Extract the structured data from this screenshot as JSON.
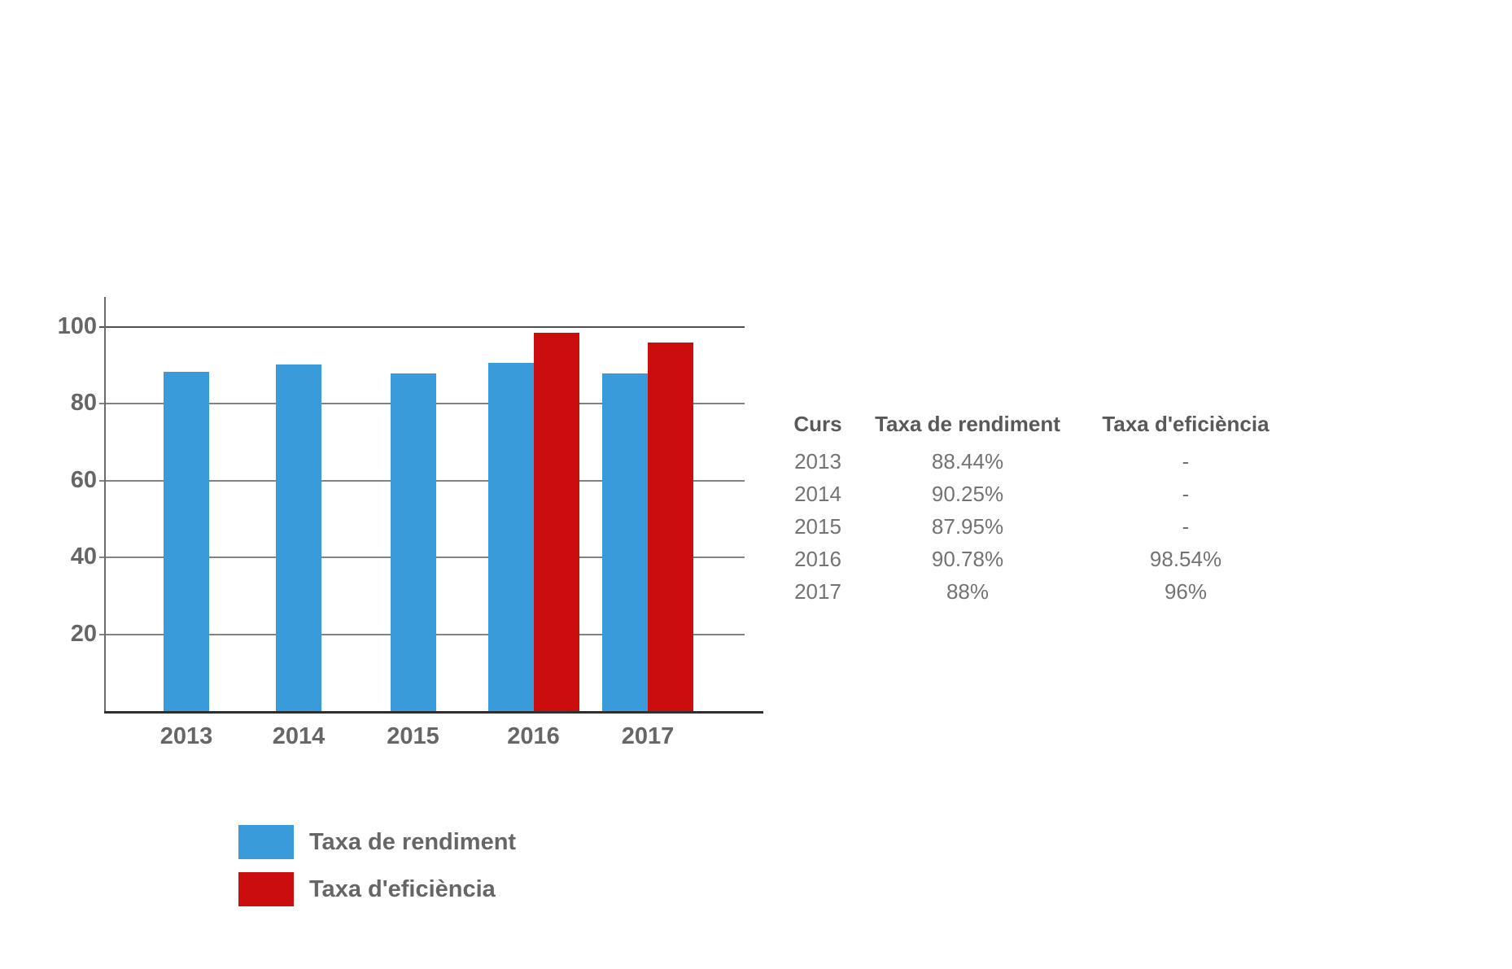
{
  "chart_data": {
    "type": "bar",
    "title": "",
    "xlabel": "",
    "ylabel": "",
    "categories": [
      "2013",
      "2014",
      "2015",
      "2016",
      "2017"
    ],
    "series": [
      {
        "name": "Taxa de rendiment",
        "color": "#3A9BDB",
        "values": [
          88.44,
          90.25,
          87.95,
          90.78,
          88
        ]
      },
      {
        "name": "Taxa d'eficiència",
        "color": "#CC0D0D",
        "values": [
          null,
          null,
          null,
          98.54,
          96
        ]
      }
    ],
    "ylim": [
      0,
      110
    ],
    "yticks": [
      100,
      80,
      60,
      40,
      20
    ],
    "grid": true,
    "legend_position": "bottom-left"
  },
  "table": {
    "headers": [
      "Curs",
      "Taxa de rendiment",
      "Taxa d'eficiència"
    ],
    "rows": [
      [
        "2013",
        "88.44%",
        "-"
      ],
      [
        "2014",
        "90.25%",
        "-"
      ],
      [
        "2015",
        "87.95%",
        "-"
      ],
      [
        "2016",
        "90.78%",
        "98.54%"
      ],
      [
        "2017",
        "88%",
        "96%"
      ]
    ]
  },
  "legend": [
    {
      "label": "Taxa de rendiment",
      "color": "#3A9BDB"
    },
    {
      "label": "Taxa d'eficiència",
      "color": "#CC0D0D"
    }
  ],
  "colors": {
    "rendiment_blue": "#3A9BDB",
    "eficiencia_red": "#CC0D0D",
    "axis_text": "#666666",
    "table_header_text": "#595959",
    "table_row_text": "#737373"
  }
}
